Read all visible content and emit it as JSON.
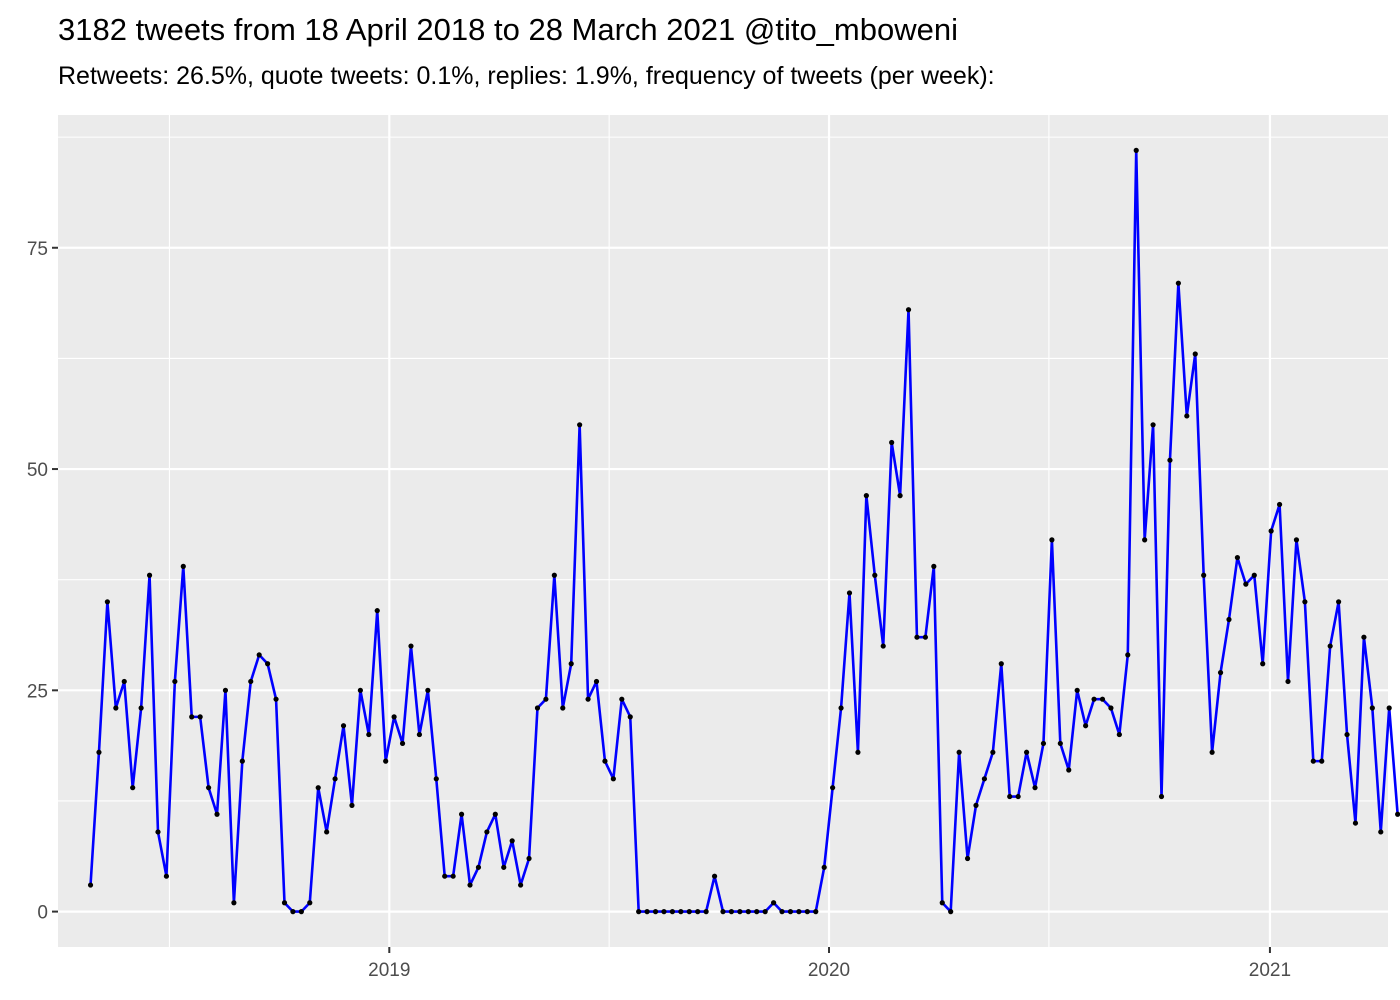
{
  "chart_data": {
    "type": "line",
    "title": "3182 tweets from 18 April 2018 to 28 March 2021 @tito_mboweni",
    "subtitle": "Retweets: 26.5%, quote tweets: 0.1%, replies: 1.9%, frequency of tweets (per week):",
    "xlabel": "",
    "ylabel": "",
    "x_start": "2018-04-28",
    "x_step_days": 7,
    "xlim": [
      "2018-04-01",
      "2021-04-09"
    ],
    "ylim": [
      -4,
      90
    ],
    "y_ticks": [
      0,
      25,
      50,
      75
    ],
    "x_ticks": [
      {
        "label": "2019",
        "date": "2019-01-01"
      },
      {
        "label": "2020",
        "date": "2020-01-01"
      },
      {
        "label": "2021",
        "date": "2021-01-01"
      }
    ],
    "grid": true,
    "legend": "none",
    "series": [
      {
        "color": "#0000ff",
        "point_color": "#000000",
        "values": [
          3,
          18,
          35,
          23,
          26,
          14,
          23,
          38,
          9,
          4,
          26,
          39,
          22,
          22,
          14,
          11,
          25,
          1,
          17,
          26,
          29,
          28,
          24,
          1,
          0,
          0,
          1,
          14,
          9,
          15,
          21,
          12,
          25,
          20,
          34,
          17,
          22,
          19,
          30,
          20,
          25,
          15,
          4,
          4,
          11,
          3,
          5,
          9,
          11,
          5,
          8,
          3,
          6,
          23,
          24,
          38,
          23,
          28,
          55,
          24,
          26,
          17,
          15,
          24,
          22,
          0,
          0,
          0,
          0,
          0,
          0,
          0,
          0,
          0,
          4,
          0,
          0,
          0,
          0,
          0,
          0,
          1,
          0,
          0,
          0,
          0,
          0,
          5,
          14,
          23,
          36,
          18,
          47,
          38,
          30,
          53,
          47,
          68,
          31,
          31,
          39,
          1,
          0,
          18,
          6,
          12,
          15,
          18,
          28,
          13,
          13,
          18,
          14,
          19,
          42,
          19,
          16,
          25,
          21,
          24,
          24,
          23,
          20,
          29,
          86,
          42,
          55,
          13,
          51,
          71,
          56,
          63,
          38,
          18,
          27,
          33,
          40,
          37,
          38,
          28,
          43,
          46,
          26,
          42,
          35,
          17,
          17,
          30,
          35,
          20,
          10,
          31,
          23,
          9,
          23,
          11
        ]
      }
    ]
  }
}
